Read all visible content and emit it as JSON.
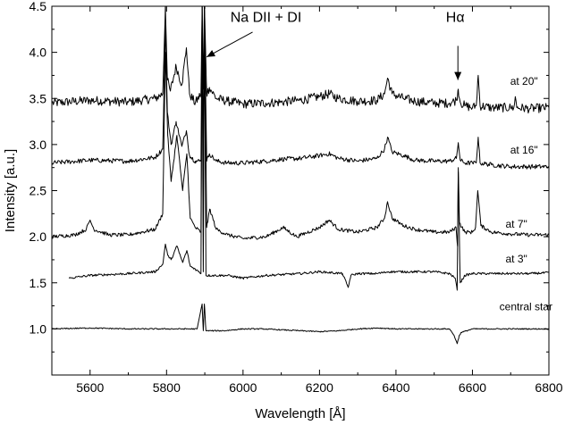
{
  "chart_data": {
    "type": "line",
    "xlabel": "Wavelength [Å]",
    "ylabel": "Intensity [a.u.]",
    "xlim": [
      5500,
      6800
    ],
    "ylim": [
      0.5,
      4.5
    ],
    "x_ticks": [
      "5600",
      "5800",
      "6000",
      "6200",
      "6400",
      "6600",
      "6800"
    ],
    "y_ticks": [
      "1.0",
      "1.5",
      "2.0",
      "2.5",
      "3.0",
      "3.5",
      "4.0",
      "4.5"
    ],
    "grid": false,
    "series": [
      {
        "name": "at 20\"",
        "baseline": 3.45,
        "noise": 0.05,
        "x": [
          5500,
          5600,
          5700,
          5770,
          5790,
          5797,
          5802,
          5810,
          5825,
          5840,
          5852,
          5860,
          5875,
          5890,
          5893,
          5896,
          5899,
          5905,
          5912,
          5930,
          5960,
          6000,
          6060,
          6100,
          6150,
          6200,
          6225,
          6250,
          6300,
          6350,
          6370,
          6378,
          6390,
          6420,
          6450,
          6500,
          6540,
          6558,
          6563,
          6568,
          6580,
          6600,
          6610,
          6615,
          6620,
          6650,
          6700,
          6708,
          6712,
          6716,
          6750,
          6800
        ],
        "y": [
          3.45,
          3.48,
          3.46,
          3.5,
          3.55,
          4.5,
          3.7,
          3.58,
          3.85,
          3.65,
          4.05,
          3.55,
          3.45,
          3.55,
          4.5,
          3.6,
          4.5,
          3.55,
          3.62,
          3.5,
          3.47,
          3.44,
          3.45,
          3.46,
          3.48,
          3.52,
          3.55,
          3.5,
          3.47,
          3.48,
          3.55,
          3.72,
          3.55,
          3.5,
          3.47,
          3.45,
          3.45,
          3.48,
          3.6,
          3.46,
          3.42,
          3.4,
          3.42,
          3.75,
          3.42,
          3.4,
          3.4,
          3.4,
          3.52,
          3.4,
          3.39,
          3.4
        ]
      },
      {
        "name": "at 16\"",
        "baseline": 2.82,
        "noise": 0.025,
        "x": [
          5500,
          5600,
          5700,
          5770,
          5790,
          5797,
          5802,
          5812,
          5825,
          5840,
          5852,
          5860,
          5875,
          5890,
          5893,
          5896,
          5899,
          5905,
          5912,
          5930,
          5960,
          6000,
          6060,
          6100,
          6150,
          6200,
          6225,
          6250,
          6300,
          6350,
          6370,
          6378,
          6390,
          6420,
          6450,
          6500,
          6540,
          6558,
          6563,
          6568,
          6580,
          6600,
          6610,
          6615,
          6620,
          6650,
          6700,
          6750,
          6800
        ],
        "y": [
          2.8,
          2.83,
          2.82,
          2.86,
          2.95,
          4.3,
          3.35,
          3.0,
          3.25,
          2.98,
          3.15,
          2.88,
          2.82,
          2.82,
          4.5,
          2.85,
          4.5,
          2.82,
          2.9,
          2.82,
          2.8,
          2.8,
          2.82,
          2.84,
          2.85,
          2.88,
          2.9,
          2.85,
          2.82,
          2.85,
          2.95,
          3.08,
          2.92,
          2.88,
          2.83,
          2.82,
          2.82,
          2.85,
          3.02,
          2.83,
          2.8,
          2.8,
          2.8,
          3.08,
          2.8,
          2.78,
          2.76,
          2.76,
          2.76
        ]
      },
      {
        "name": "at 7\"",
        "baseline": 2.0,
        "noise": 0.02,
        "x": [
          5500,
          5560,
          5590,
          5600,
          5610,
          5650,
          5700,
          5770,
          5790,
          5797,
          5803,
          5812,
          5827,
          5842,
          5853,
          5862,
          5875,
          5890,
          5893,
          5896,
          5899,
          5905,
          5913,
          5930,
          5960,
          6000,
          6060,
          6105,
          6140,
          6200,
          6225,
          6250,
          6300,
          6350,
          6370,
          6378,
          6390,
          6420,
          6450,
          6500,
          6540,
          6557,
          6561,
          6563,
          6566,
          6580,
          6600,
          6608,
          6614,
          6622,
          6650,
          6700,
          6750,
          6800
        ],
        "y": [
          2.0,
          2.02,
          2.08,
          2.18,
          2.08,
          2.02,
          2.02,
          2.08,
          2.25,
          4.0,
          3.1,
          2.6,
          3.1,
          2.5,
          2.9,
          2.2,
          2.1,
          2.05,
          4.5,
          2.1,
          4.5,
          2.1,
          2.3,
          2.08,
          2.02,
          1.98,
          2.0,
          2.1,
          2.0,
          2.1,
          2.18,
          2.08,
          2.05,
          2.1,
          2.2,
          2.38,
          2.2,
          2.12,
          2.08,
          2.05,
          2.05,
          2.1,
          1.9,
          2.75,
          2.15,
          2.05,
          2.05,
          2.1,
          2.5,
          2.12,
          2.05,
          2.03,
          2.02,
          2.02
        ]
      },
      {
        "name": "at 3\"",
        "baseline": 1.6,
        "noise": 0.012,
        "x": [
          5545,
          5600,
          5700,
          5770,
          5790,
          5797,
          5803,
          5812,
          5827,
          5842,
          5853,
          5862,
          5875,
          5890,
          5893,
          5896,
          5899,
          5903,
          5920,
          5960,
          6000,
          6060,
          6150,
          6200,
          6260,
          6275,
          6282,
          6300,
          6350,
          6380,
          6450,
          6500,
          6540,
          6555,
          6560,
          6563,
          6568,
          6580,
          6600,
          6650,
          6700,
          6750,
          6800
        ],
        "y": [
          1.55,
          1.58,
          1.6,
          1.62,
          1.7,
          1.92,
          1.8,
          1.75,
          1.9,
          1.72,
          1.85,
          1.68,
          1.65,
          1.6,
          4.5,
          1.62,
          4.5,
          1.58,
          1.58,
          1.58,
          1.55,
          1.58,
          1.6,
          1.62,
          1.6,
          1.45,
          1.58,
          1.6,
          1.6,
          1.62,
          1.62,
          1.62,
          1.6,
          1.55,
          1.42,
          2.7,
          1.5,
          1.58,
          1.6,
          1.6,
          1.6,
          1.6,
          1.61
        ]
      },
      {
        "name": "central star",
        "baseline": 1.0,
        "noise": 0.006,
        "x": [
          5500,
          5600,
          5700,
          5800,
          5880,
          5893,
          5896,
          5899,
          5903,
          5950,
          6000,
          6050,
          6100,
          6150,
          6200,
          6250,
          6300,
          6350,
          6400,
          6450,
          6500,
          6540,
          6552,
          6560,
          6565,
          6570,
          6585,
          6600,
          6650,
          6700,
          6750,
          6800
        ],
        "y": [
          1.0,
          1.01,
          1.0,
          1.0,
          1.0,
          1.27,
          0.98,
          1.27,
          0.98,
          0.98,
          1.0,
          1.0,
          0.99,
          0.98,
          0.97,
          0.98,
          1.0,
          1.01,
          1.0,
          1.0,
          1.0,
          1.0,
          0.93,
          0.84,
          0.92,
          0.96,
          0.98,
          1.0,
          1.0,
          1.0,
          1.0,
          1.0
        ]
      }
    ],
    "labels": [
      {
        "text": "at 20\"",
        "x": 6735,
        "y": 3.65
      },
      {
        "text": "at 16\"",
        "x": 6735,
        "y": 2.9
      },
      {
        "text": "at 7\"",
        "x": 6715,
        "y": 2.1
      },
      {
        "text": "at 3\"",
        "x": 6715,
        "y": 1.72
      },
      {
        "text": "central star",
        "x": 6740,
        "y": 1.2
      }
    ],
    "annotations": [
      {
        "text": "Na DII + DI",
        "text_x": 6060,
        "text_y": 4.33,
        "arrow_from": [
          6025,
          4.22
        ],
        "arrow_to": [
          5905,
          3.95
        ]
      },
      {
        "text": "Hα",
        "text_x": 6555,
        "text_y": 4.33,
        "arrow_from": [
          6562,
          4.07
        ],
        "arrow_to": [
          6562,
          3.7
        ]
      }
    ]
  }
}
